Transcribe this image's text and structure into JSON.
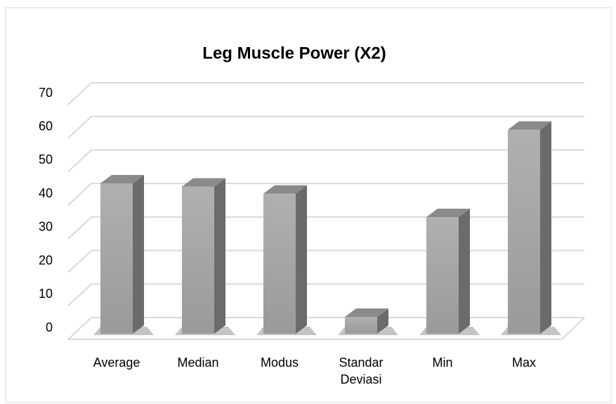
{
  "chart_data": {
    "type": "bar",
    "title": "Leg Muscle Power (X2)",
    "categories": [
      "Average",
      "Median",
      "Modus",
      "Standar Deviasi",
      "Min",
      "Max"
    ],
    "values": [
      45.4,
      44.4,
      42.3,
      5.1,
      35.2,
      61.6
    ],
    "color": "#a6a6a6",
    "ylim": [
      0,
      70
    ],
    "yticks": [
      0,
      10,
      20,
      30,
      40,
      50,
      60,
      70
    ],
    "grid": true
  }
}
